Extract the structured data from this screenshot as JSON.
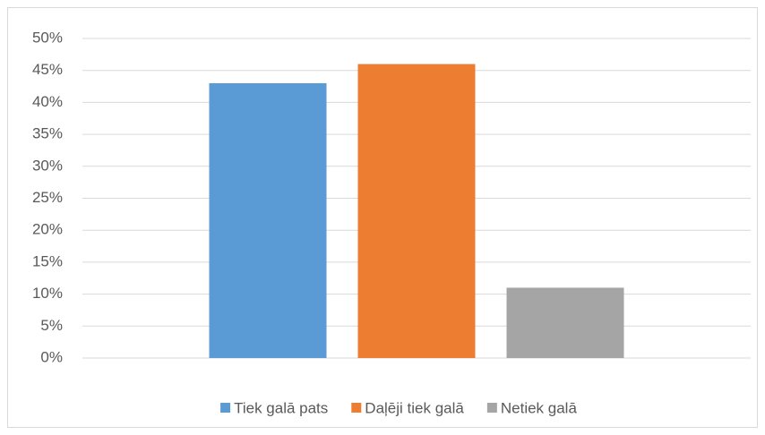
{
  "chart_data": {
    "type": "bar",
    "categories": [
      null
    ],
    "series": [
      {
        "name": "Tiek galā pats",
        "color": "#5b9bd5",
        "values": [
          43
        ]
      },
      {
        "name": "Daļēji tiek galā",
        "color": "#ed7d31",
        "values": [
          46
        ]
      },
      {
        "name": "Netiek galā",
        "color": "#a5a5a5",
        "values": [
          11
        ]
      }
    ],
    "ylim": [
      0,
      50
    ],
    "yticks": [
      {
        "value": 0,
        "label": "0%"
      },
      {
        "value": 5,
        "label": "5%"
      },
      {
        "value": 10,
        "label": "10%"
      },
      {
        "value": 15,
        "label": "15%"
      },
      {
        "value": 20,
        "label": "20%"
      },
      {
        "value": 25,
        "label": "25%"
      },
      {
        "value": 30,
        "label": "30%"
      },
      {
        "value": 35,
        "label": "35%"
      },
      {
        "value": 40,
        "label": "40%"
      },
      {
        "value": 45,
        "label": "45%"
      },
      {
        "value": 50,
        "label": "50%"
      }
    ],
    "grid": true,
    "legend": "bottom"
  }
}
